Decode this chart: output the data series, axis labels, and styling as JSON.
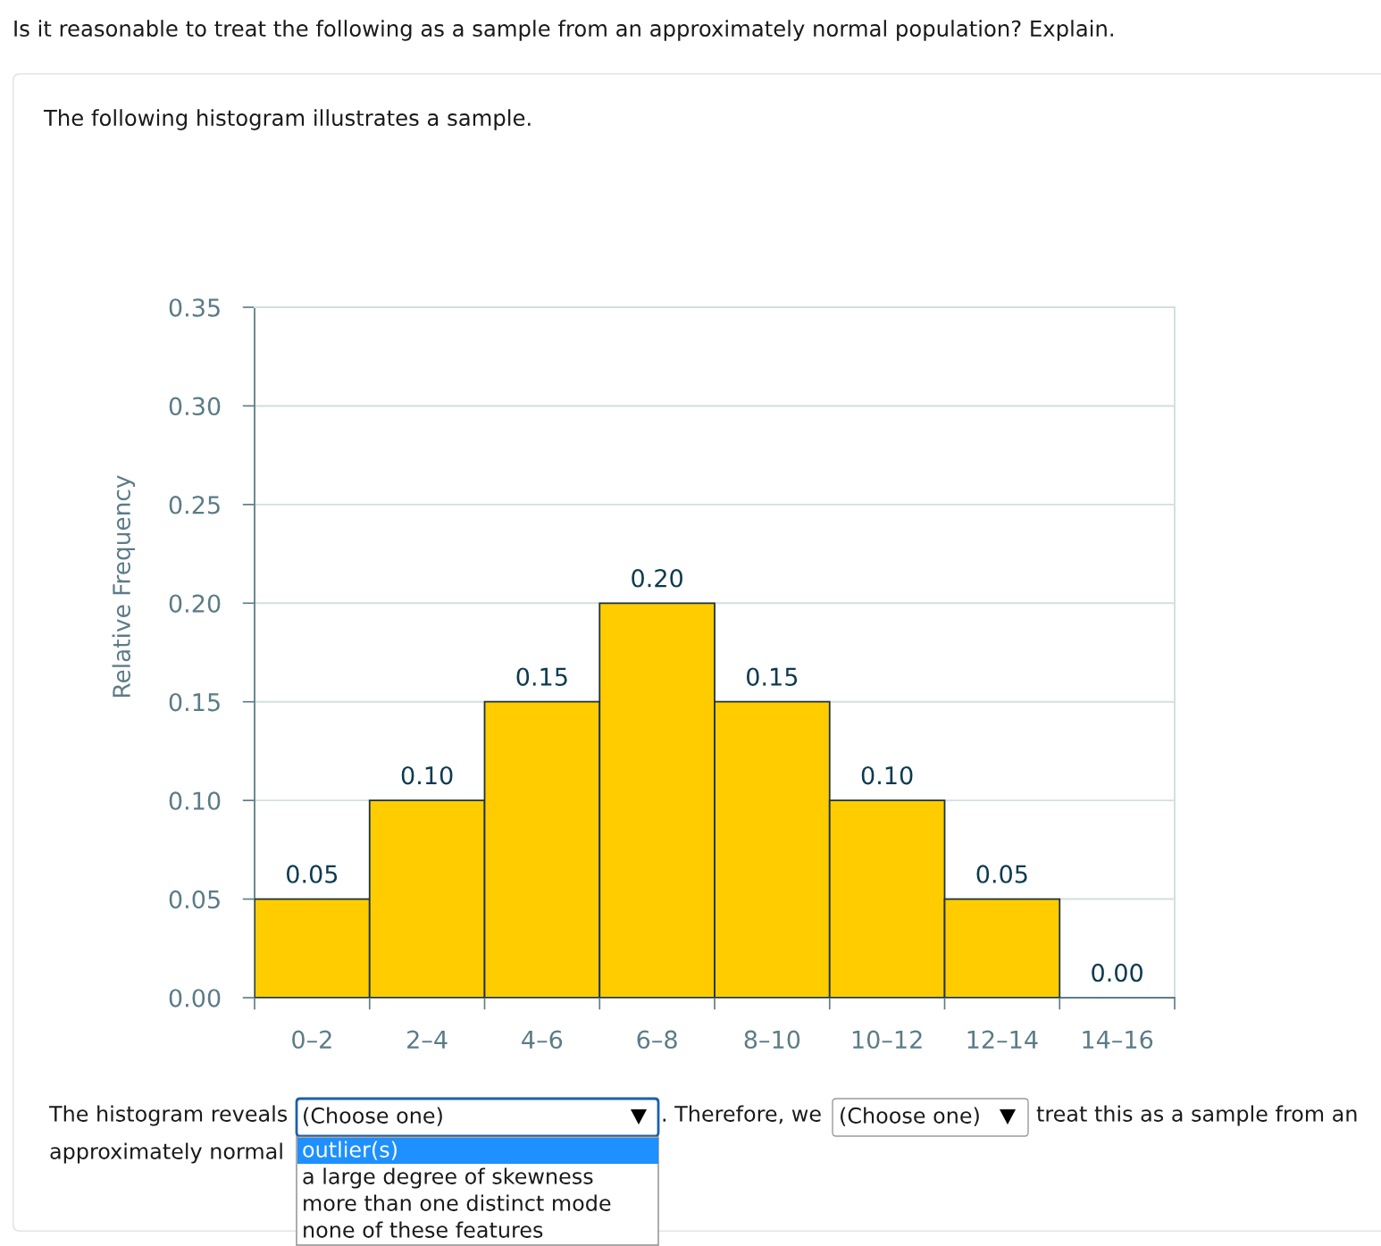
{
  "chart_data": {
    "type": "bar",
    "title": "Is it reasonable to treat the following as a sample from an approximately normal population? Explain.",
    "subtitle": "The following histogram illustrates a sample.",
    "ylabel": "Relative Frequency",
    "categories": [
      "0–2",
      "2–4",
      "4–6",
      "6–8",
      "8–10",
      "10–12",
      "12–14",
      "14–16"
    ],
    "values": [
      0.05,
      0.1,
      0.15,
      0.2,
      0.15,
      0.1,
      0.05,
      0.0
    ],
    "value_labels": [
      "0.05",
      "0.10",
      "0.15",
      "0.20",
      "0.15",
      "0.10",
      "0.05",
      "0.00"
    ],
    "color": "#ffcc00",
    "ylim": [
      0,
      0.35
    ],
    "yticks": [
      {
        "value": 0,
        "label": "0.00"
      },
      {
        "value": 0.05,
        "label": "0.05"
      },
      {
        "value": 0.1,
        "label": "0.10"
      },
      {
        "value": 0.15,
        "label": "0.15"
      },
      {
        "value": 0.2,
        "label": "0.20"
      },
      {
        "value": 0.25,
        "label": "0.25"
      },
      {
        "value": 0.3,
        "label": "0.30"
      },
      {
        "value": 0.35,
        "label": "0.35"
      }
    ],
    "grid": "y",
    "annotations": [
      "The histogram reveals",
      "(Choose one)",
      ". Therefore, we",
      "(Choose one)",
      "treat this as a sample from an",
      "approximately normal",
      "outlier(s)",
      "a large degree of skewness",
      "more than one distinct mode",
      "none of these features"
    ]
  }
}
